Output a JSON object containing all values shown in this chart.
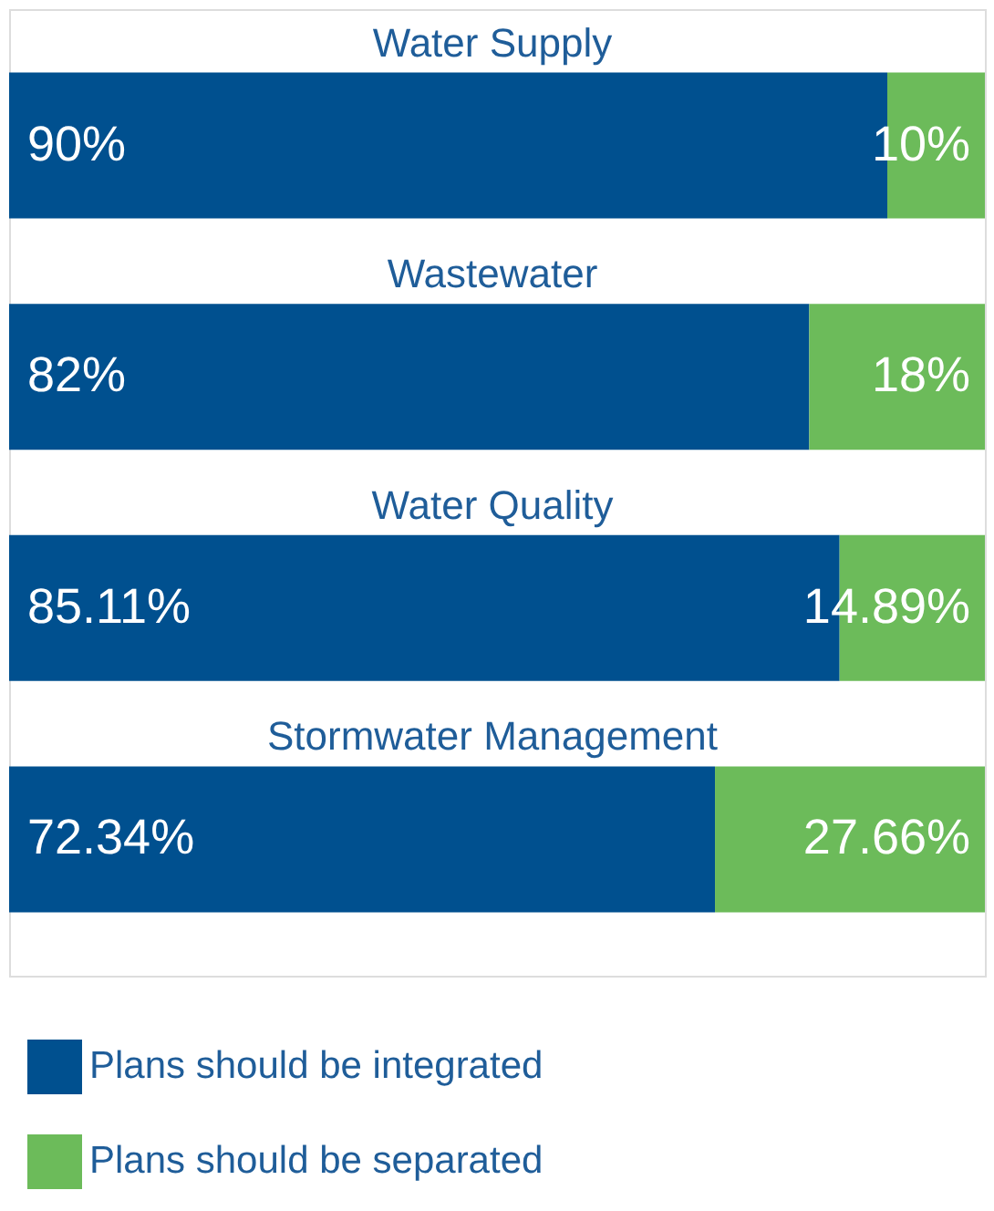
{
  "chart_data": {
    "type": "bar",
    "orientation": "horizontal",
    "stacked": true,
    "categories": [
      "Water Supply",
      "Wastewater",
      "Water Quality",
      "Stormwater Management"
    ],
    "series": [
      {
        "name": "Plans should be integrated",
        "color": "#00508f",
        "values": [
          90,
          82,
          85.11,
          72.34
        ],
        "value_labels": [
          "90%",
          "82%",
          "85.11%",
          "72.34%"
        ]
      },
      {
        "name": "Plans should be separated",
        "color": "#6cbb5a",
        "values": [
          10,
          18,
          14.89,
          27.66
        ],
        "value_labels": [
          "10%",
          "18%",
          "14.89%",
          "27.66%"
        ]
      }
    ],
    "xlim": [
      0,
      100
    ],
    "tick_labels": false,
    "legend": "bottom"
  }
}
